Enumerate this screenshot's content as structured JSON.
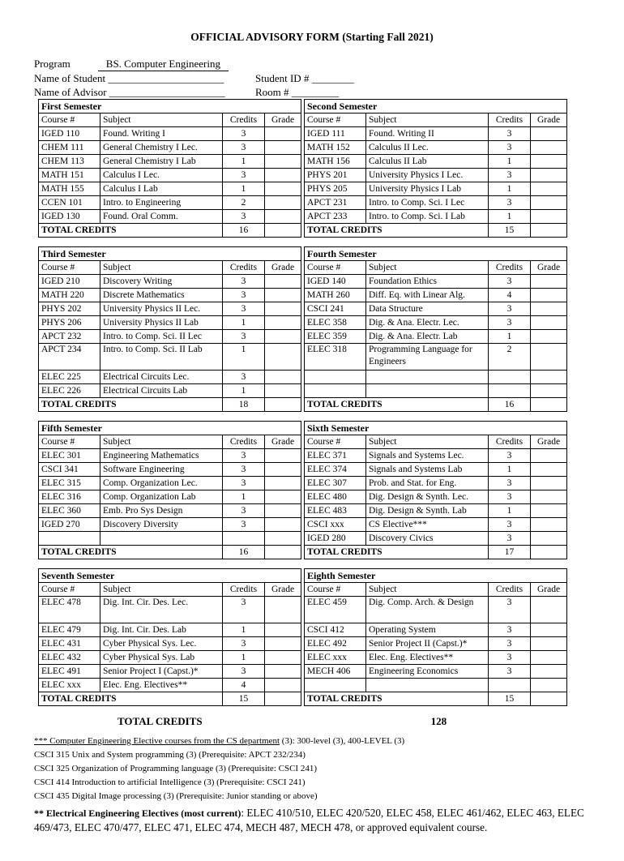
{
  "page": {
    "title": "OFFICIAL ADVISORY FORM (Starting Fall 2021)"
  },
  "header": {
    "program_label": "Program",
    "program_value": "BS. Computer Engineering",
    "student_label": "Name of Student ______________________",
    "student_id_label": "Student ID # ________",
    "advisor_label": "Name of Advisor ______________________",
    "room_label": "Room #  _________"
  },
  "columns": {
    "course": "Course #",
    "subject": "Subject",
    "credits": "Credits",
    "grade": "Grade"
  },
  "labels": {
    "total": "TOTAL CREDITS"
  },
  "semesters": [
    {
      "name": "First Semester",
      "total": "16",
      "rows": [
        {
          "course": "IGED 110",
          "subject": "Found.  Writing I",
          "credits": "3"
        },
        {
          "course": "CHEM 111",
          "subject": "General Chemistry I Lec.",
          "credits": "3"
        },
        {
          "course": "CHEM 113",
          "subject": "General Chemistry I Lab",
          "credits": "1"
        },
        {
          "course": "MATH 151",
          "subject": "Calculus I Lec.",
          "credits": "3"
        },
        {
          "course": "MATH 155",
          "subject": "Calculus I Lab",
          "credits": "1"
        },
        {
          "course": "CCEN 101",
          "subject": "Intro. to Engineering",
          "credits": "2"
        },
        {
          "course": "IGED 130",
          "subject": "Found. Oral Comm.",
          "credits": "3"
        }
      ]
    },
    {
      "name": "Second Semester",
      "total": "15",
      "rows": [
        {
          "course": "IGED 111",
          "subject": "Found. Writing II",
          "credits": "3"
        },
        {
          "course": "MATH 152",
          "subject": "Calculus II Lec.",
          "credits": "3"
        },
        {
          "course": "MATH 156",
          "subject": "Calculus II Lab",
          "credits": "1"
        },
        {
          "course": "PHYS 201",
          "subject": "University Physics I Lec.",
          "credits": "3"
        },
        {
          "course": "PHYS 205",
          "subject": "University Physics I Lab",
          "credits": "1"
        },
        {
          "course": "APCT 231",
          "subject": "Intro. to Comp. Sci. I Lec",
          "credits": "3"
        },
        {
          "course": "APCT 233",
          "subject": "Intro. to Comp. Sci. I Lab",
          "credits": "1"
        }
      ]
    },
    {
      "name": "Third Semester",
      "total": "18",
      "rows": [
        {
          "course": "IGED 210",
          "subject": "Discovery Writing",
          "credits": "3"
        },
        {
          "course": "MATH 220",
          "subject": "Discrete Mathematics",
          "credits": "3"
        },
        {
          "course": "PHYS 202",
          "subject": "University Physics II Lec.",
          "credits": "3"
        },
        {
          "course": "PHYS 206",
          "subject": "University Physics II Lab",
          "credits": "1"
        },
        {
          "course": "APCT 232",
          "subject": "Intro. to Comp. Sci. II Lec",
          "credits": "3"
        },
        {
          "course": "APCT 234",
          "subject": "Intro. to Comp. Sci. II Lab",
          "credits": "1"
        },
        {
          "course": "ELEC 225",
          "subject": "Electrical Circuits Lec.",
          "credits": "3"
        },
        {
          "course": "ELEC 226",
          "subject": "Electrical Circuits Lab",
          "credits": "1"
        }
      ]
    },
    {
      "name": "Fourth Semester",
      "total": "16",
      "rows": [
        {
          "course": "IGED 140",
          "subject": "Foundation Ethics",
          "credits": "3"
        },
        {
          "course": "MATH 260",
          "subject": "Diff. Eq. with Linear Alg.",
          "credits": "4"
        },
        {
          "course": "CSCI 241",
          "subject": "Data Structure",
          "credits": "3"
        },
        {
          "course": "ELEC 358",
          "subject": "Dig. & Ana. Electr.  Lec.",
          "credits": "3"
        },
        {
          "course": "ELEC 359",
          "subject": "Dig. & Ana. Electr.  Lab",
          "credits": "1"
        },
        {
          "course": "ELEC 318",
          "subject": "Programming Language for Engineers",
          "credits": "2"
        },
        {
          "course": "",
          "subject": "",
          "credits": ""
        },
        {
          "course": "",
          "subject": "",
          "credits": ""
        }
      ]
    },
    {
      "name": "Fifth Semester",
      "total": "16",
      "rows": [
        {
          "course": "ELEC 301",
          "subject": "Engineering Mathematics",
          "credits": "3"
        },
        {
          "course": "CSCI 341",
          "subject": "Software Engineering",
          "credits": "3"
        },
        {
          "course": "ELEC 315",
          "subject": "Comp. Organization Lec.",
          "credits": "3"
        },
        {
          "course": "ELEC 316",
          "subject": "Comp. Organization Lab",
          "credits": "1"
        },
        {
          "course": "ELEC 360",
          "subject": "Emb. Pro Sys Design",
          "credits": "3"
        },
        {
          "course": "IGED 270",
          "subject": "Discovery Diversity",
          "credits": "3"
        },
        {
          "course": "",
          "subject": "",
          "credits": ""
        }
      ]
    },
    {
      "name": "Sixth Semester",
      "total": "17",
      "rows": [
        {
          "course": "ELEC 371",
          "subject": "Signals and Systems Lec.",
          "credits": "3"
        },
        {
          "course": "ELEC 374",
          "subject": "Signals and Systems Lab",
          "credits": "1"
        },
        {
          "course": "ELEC 307",
          "subject": "Prob. and Stat. for Eng.",
          "credits": "3"
        },
        {
          "course": "ELEC 480",
          "subject": "Dig. Design & Synth. Lec.",
          "credits": "3"
        },
        {
          "course": "ELEC 483",
          "subject": "Dig. Design & Synth. Lab",
          "credits": "1"
        },
        {
          "course": "CSCI xxx",
          "subject": "CS Elective***",
          "credits": "3"
        },
        {
          "course": "IGED 280",
          "subject": "Discovery Civics",
          "credits": "3"
        }
      ]
    },
    {
      "name": "Seventh Semester",
      "total": "15",
      "rows": [
        {
          "course": "ELEC 478",
          "subject": "Dig. Int. Cir. Des. Lec.",
          "credits": "3"
        },
        {
          "course": "ELEC 479",
          "subject": "Dig. Int. Cir. Des. Lab",
          "credits": "1"
        },
        {
          "course": "ELEC 431",
          "subject": "Cyber Physical Sys. Lec.",
          "credits": "3"
        },
        {
          "course": "ELEC 432",
          "subject": "Cyber Physical Sys. Lab",
          "credits": "1"
        },
        {
          "course": "ELEC 491",
          "subject": "Senior Project I (Capst.)*",
          "credits": "3"
        },
        {
          "course": "ELEC xxx",
          "subject": "Elec. Eng. Electives**",
          "credits": "4"
        }
      ]
    },
    {
      "name": "Eighth Semester",
      "total": "15",
      "rows": [
        {
          "course": "ELEC 459",
          "subject": "Dig. Comp. Arch. & Design",
          "credits": "3"
        },
        {
          "course": "CSCI 412",
          "subject": "Operating System",
          "credits": "3"
        },
        {
          "course": "ELEC 492",
          "subject": "Senior Project II (Capst.)*",
          "credits": "3"
        },
        {
          "course": "ELEC xxx",
          "subject": "Elec. Eng. Electives**",
          "credits": "3"
        },
        {
          "course": "MECH 406",
          "subject": "Engineering Economics",
          "credits": "3"
        },
        {
          "course": "",
          "subject": "",
          "credits": ""
        }
      ]
    }
  ],
  "grand_total": {
    "label": "TOTAL CREDITS",
    "value": "128"
  },
  "footnotes": {
    "cs_underlined": "*** Computer Engineering Elective courses from the CS department",
    "cs_rest": " (3): 300-level (3), 400-LEVEL (3)",
    "courses": [
      "CSCI 315 Unix and System programming (3) (Prerequisite: APCT 232/234)",
      "CSCI 325 Organization of Programming language (3) (Prerequisite: CSCI 241)",
      "CSCI 414 Introduction to artificial Intelligence (3) (Prerequisite: CSCI 241)",
      "CSCI 435 Digital Image processing (3) (Prerequisite: Junior standing or above)"
    ],
    "ee_bold": "** Electrical Engineering Electives (most current)",
    "ee_rest": ": ELEC 410/510, ELEC 420/520, ELEC 458, ELEC 461/462, ELEC 463, ELEC 469/473, ELEC 470/477, ELEC 471, ELEC 474, MECH 487, MECH 478, or approved equivalent course."
  }
}
